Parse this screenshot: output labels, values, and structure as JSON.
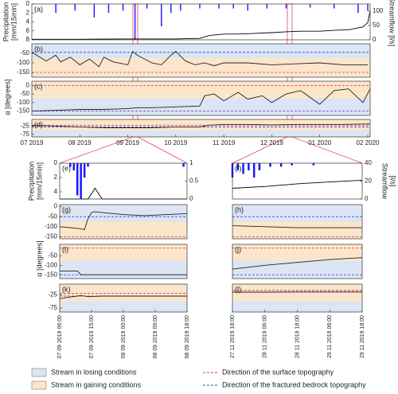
{
  "chart_data": [
    {
      "type": "bar",
      "label": "(a)",
      "xlim": [
        0,
        7.05
      ],
      "invert_y": true,
      "ylim": [
        0,
        8
      ],
      "yticks": [
        0,
        2,
        4,
        6,
        8
      ],
      "ylabel": [
        "Precipitation",
        "[mm/15min]"
      ],
      "y2lim": [
        0,
        125
      ],
      "y2ticks": [
        0,
        50,
        100
      ],
      "y2label": [
        "Streamflow [l/s]"
      ],
      "series": [
        {
          "color": "#1a1aff",
          "x": [
            0.5,
            0.9,
            1.3,
            1.6,
            1.9,
            2.15,
            2.4,
            2.7,
            2.9,
            3.1,
            3.5,
            3.9,
            4.2,
            4.5,
            4.9,
            5.3,
            5.8,
            6.3,
            6.8,
            7.0
          ],
          "values": [
            2,
            1.5,
            3,
            2,
            1.5,
            8,
            1,
            5,
            2,
            1.5,
            1,
            1,
            1,
            1.5,
            1,
            1,
            0.8,
            1,
            2,
            1.5
          ]
        },
        {
          "type": "line",
          "axis": "y2",
          "color": "#000000",
          "x": [
            0,
            1,
            2,
            3,
            3.5,
            3.7,
            4,
            4.3,
            4.6,
            5,
            5.3,
            5.6,
            6,
            6.3,
            6.6,
            6.9,
            7.0,
            7.05
          ],
          "values": [
            2,
            2,
            3,
            3,
            5,
            15,
            20,
            20,
            22,
            25,
            28,
            30,
            30,
            33,
            35,
            45,
            60,
            100
          ]
        }
      ]
    },
    {
      "type": "line",
      "label": "(b)",
      "xlim": [
        0,
        7.05
      ],
      "ylim": [
        -175,
        0
      ],
      "yticks": [
        -50,
        -100,
        -150
      ],
      "bands": [
        {
          "range": [
            -75,
            0
          ],
          "color": "#dbe5f3"
        },
        {
          "range": [
            -175,
            -75
          ],
          "color": "#fbe6cb"
        }
      ],
      "hlines": [
        {
          "value": -45,
          "color": "#3a3ad0"
        },
        {
          "value": -150,
          "color": "#e0305a"
        }
      ],
      "series": [
        {
          "color": "#222222",
          "x": [
            0,
            0.3,
            0.5,
            0.6,
            0.8,
            1.0,
            1.2,
            1.4,
            1.5,
            1.7,
            2.0,
            2.1,
            2.2,
            2.5,
            2.7,
            2.9,
            3.0,
            3.2,
            3.4,
            3.6,
            3.8,
            4.0,
            4.5,
            5.0,
            5.5,
            6.0,
            6.5,
            7.0
          ],
          "values": [
            -45,
            -90,
            -60,
            -95,
            -70,
            -110,
            -80,
            -120,
            -70,
            -95,
            -110,
            -40,
            -60,
            -100,
            -110,
            -60,
            -40,
            -90,
            -110,
            -100,
            -115,
            -100,
            -100,
            -110,
            -105,
            -100,
            -110,
            -110
          ]
        }
      ]
    },
    {
      "type": "line",
      "label": "(c)",
      "xlim": [
        0,
        7.05
      ],
      "ylim": [
        -175,
        25
      ],
      "yticks": [
        0,
        -50,
        -100,
        -150
      ],
      "bands": [
        {
          "range": [
            -75,
            25
          ],
          "color": "#fbe6cb"
        },
        {
          "range": [
            -175,
            -75
          ],
          "color": "#dbe5f3"
        }
      ],
      "hlines": [
        {
          "value": 0,
          "color": "#e0305a"
        },
        {
          "value": -150,
          "color": "#3a3ad0"
        }
      ],
      "series": [
        {
          "color": "#222222",
          "x": [
            0,
            0.5,
            1,
            1.5,
            2,
            2.2,
            2.5,
            3,
            3.5,
            3.6,
            3.8,
            4,
            4.3,
            4.5,
            4.8,
            5,
            5.3,
            5.6,
            6,
            6.3,
            6.6,
            6.9,
            7.05
          ],
          "values": [
            -150,
            -145,
            -140,
            -140,
            -135,
            -130,
            -130,
            -125,
            -120,
            -60,
            -50,
            -90,
            -40,
            -80,
            -60,
            -100,
            -50,
            -30,
            -110,
            -30,
            -20,
            -100,
            -20
          ]
        }
      ]
    },
    {
      "type": "line",
      "label": "(d)",
      "xlim": [
        0,
        7.05
      ],
      "ylim": [
        -90,
        15
      ],
      "yticks": [
        -25,
        -75
      ],
      "xticks": [
        {
          "value": 0,
          "label": "07 2019"
        },
        {
          "value": 1,
          "label": "08 2019"
        },
        {
          "value": 2,
          "label": "09 2019"
        },
        {
          "value": 3,
          "label": "10 2019"
        },
        {
          "value": 4,
          "label": "11 2019"
        },
        {
          "value": 5,
          "label": "12 2019"
        },
        {
          "value": 6,
          "label": "01 2020"
        },
        {
          "value": 7,
          "label": "02 2020"
        }
      ],
      "bands": [
        {
          "range": [
            -50,
            15
          ],
          "color": "#fbe6cb"
        },
        {
          "range": [
            -90,
            -50
          ],
          "color": "#dbe5f3"
        }
      ],
      "hlines": [
        {
          "value": -20,
          "color": "#e0305a"
        },
        {
          "value": -30,
          "color": "#3a3ad0"
        }
      ],
      "series": [
        {
          "color": "#222222",
          "x": [
            0,
            0.5,
            1,
            1.5,
            2,
            2.5,
            3,
            3.5,
            3.7,
            4,
            4.5,
            5,
            5.5,
            6,
            6.5,
            7.05
          ],
          "values": [
            -20,
            -25,
            -30,
            -35,
            -35,
            -35,
            -30,
            -30,
            -20,
            -15,
            -15,
            -18,
            -15,
            -15,
            -15,
            -12
          ]
        }
      ]
    },
    {
      "type": "bar",
      "label": "(e)",
      "xlim": [
        0,
        36
      ],
      "invert_y": true,
      "ylim": [
        0,
        5
      ],
      "yticks": [
        0,
        2,
        4
      ],
      "ylabel": [
        "Precipitation",
        "[mm/15min]"
      ],
      "y2lim": [
        0,
        1
      ],
      "y2ticks": [
        0,
        0.5,
        1
      ],
      "series": [
        {
          "color": "#1a1aff",
          "x": [
            3,
            4,
            5,
            6,
            7,
            8,
            35
          ],
          "values": [
            0.5,
            1,
            4.5,
            5,
            2,
            0.5,
            0.5
          ]
        },
        {
          "type": "line",
          "axis": "y2",
          "color": "#000000",
          "x": [
            0,
            8,
            10,
            12,
            36
          ],
          "values": [
            0,
            0,
            0.3,
            0,
            0
          ]
        }
      ]
    },
    {
      "type": "bar",
      "label": "(f)",
      "xlim": [
        0,
        48
      ],
      "invert_y": true,
      "ylim": [
        0,
        5
      ],
      "y2lim": [
        0,
        40
      ],
      "y2ticks": [
        0,
        20,
        40
      ],
      "y2label": [
        "Streamflow",
        "[l/s]"
      ],
      "series": [
        {
          "color": "#1a1aff",
          "x": [
            0,
            2,
            4,
            6,
            8,
            10,
            14,
            18,
            22,
            30
          ],
          "values": [
            2,
            1,
            1.5,
            1,
            2,
            1,
            0.5,
            0.5,
            0.3,
            0.3
          ]
        },
        {
          "type": "line",
          "axis": "y2",
          "color": "#000000",
          "x": [
            0,
            12,
            24,
            36,
            48
          ],
          "values": [
            12,
            14,
            17,
            19,
            21
          ]
        }
      ]
    },
    {
      "type": "line",
      "label": "(g)",
      "xlim": [
        0,
        36
      ],
      "ylim": [
        -160,
        10
      ],
      "yticks": [
        0,
        -50,
        -100,
        -150
      ],
      "bands": [
        {
          "range": [
            -75,
            10
          ],
          "color": "#dbe5f3"
        },
        {
          "range": [
            -160,
            -75
          ],
          "color": "#fbe6cb"
        }
      ],
      "hlines": [
        {
          "value": -50,
          "color": "#3a3ad0"
        },
        {
          "value": -150,
          "color": "#e0305a"
        }
      ],
      "series": [
        {
          "color": "#222222",
          "x": [
            0,
            3,
            6,
            7,
            8,
            9,
            10,
            12,
            18,
            24,
            30,
            36
          ],
          "values": [
            -100,
            -105,
            -110,
            -115,
            -60,
            -30,
            -25,
            -30,
            -40,
            -45,
            -40,
            -35
          ]
        }
      ]
    },
    {
      "type": "line",
      "label": "(h)",
      "xlim": [
        0,
        48
      ],
      "ylim": [
        -160,
        10
      ],
      "bands": [
        {
          "range": [
            -75,
            10
          ],
          "color": "#dbe5f3"
        },
        {
          "range": [
            -160,
            -75
          ],
          "color": "#fbe6cb"
        }
      ],
      "hlines": [
        {
          "value": -50,
          "color": "#3a3ad0"
        },
        {
          "value": -150,
          "color": "#e0305a"
        }
      ],
      "series": [
        {
          "color": "#222222",
          "x": [
            0,
            12,
            24,
            36,
            48
          ],
          "values": [
            -95,
            -100,
            -105,
            -105,
            -105
          ]
        }
      ]
    },
    {
      "type": "line",
      "label": "(i)",
      "xlim": [
        0,
        36
      ],
      "ylim": [
        -170,
        10
      ],
      "yticks": [
        -50,
        -100,
        -150
      ],
      "bands": [
        {
          "range": [
            -75,
            10
          ],
          "color": "#fbe6cb"
        },
        {
          "range": [
            -170,
            -75
          ],
          "color": "#dbe5f3"
        }
      ],
      "hlines": [
        {
          "value": -10,
          "color": "#e0305a"
        },
        {
          "value": -150,
          "color": "#3a3ad0"
        }
      ],
      "series": [
        {
          "color": "#222222",
          "x": [
            0,
            5,
            6,
            36
          ],
          "values": [
            -130,
            -130,
            -150,
            -150
          ]
        }
      ]
    },
    {
      "type": "line",
      "label": "(j)",
      "xlim": [
        0,
        48
      ],
      "ylim": [
        -170,
        10
      ],
      "bands": [
        {
          "range": [
            -75,
            10
          ],
          "color": "#fbe6cb"
        },
        {
          "range": [
            -170,
            -75
          ],
          "color": "#dbe5f3"
        }
      ],
      "hlines": [
        {
          "value": -10,
          "color": "#e0305a"
        },
        {
          "value": -150,
          "color": "#3a3ad0"
        }
      ],
      "series": [
        {
          "color": "#222222",
          "x": [
            0,
            12,
            24,
            36,
            48
          ],
          "values": [
            -120,
            -100,
            -85,
            -70,
            -60
          ]
        }
      ]
    },
    {
      "type": "line",
      "label": "(k)",
      "xlim": [
        0,
        36
      ],
      "ylim": [
        -90,
        15
      ],
      "yticks": [
        -25,
        -75
      ],
      "xticks": [
        {
          "value": 0,
          "label": "07 09 2019 06:00"
        },
        {
          "value": 9,
          "label": "07 09 2019 15:00"
        },
        {
          "value": 18,
          "label": "08 09 2019 00:00"
        },
        {
          "value": 27,
          "label": "08 09 2019 09:00"
        },
        {
          "value": 36,
          "label": "08 09 2019 18:00"
        }
      ],
      "bands": [
        {
          "range": [
            -50,
            15
          ],
          "color": "#fbe6cb"
        },
        {
          "range": [
            -90,
            -50
          ],
          "color": "#dbe5f3"
        }
      ],
      "hlines": [
        {
          "value": -20,
          "color": "#e0305a"
        },
        {
          "value": -30,
          "color": "#3a3ad0"
        }
      ],
      "series": [
        {
          "color": "#222222",
          "x": [
            0,
            2,
            5,
            6,
            8,
            12,
            24,
            36
          ],
          "values": [
            -40,
            -35,
            -30,
            -28,
            -32,
            -30,
            -30,
            -30
          ]
        }
      ]
    },
    {
      "type": "line",
      "label": "(l)",
      "xlim": [
        0,
        48
      ],
      "ylim": [
        -90,
        15
      ],
      "xticks": [
        {
          "value": 0,
          "label": "27 11 2019 18:00"
        },
        {
          "value": 12,
          "label": "28 11 2019 06:00"
        },
        {
          "value": 24,
          "label": "28 11 2019 18:00"
        },
        {
          "value": 36,
          "label": "29 11 2019 06:00"
        },
        {
          "value": 48,
          "label": "29 11 2019 18:00"
        }
      ],
      "bands": [
        {
          "range": [
            -50,
            15
          ],
          "color": "#fbe6cb"
        },
        {
          "range": [
            -90,
            -50
          ],
          "color": "#dbe5f3"
        }
      ],
      "hlines": [
        {
          "value": -8,
          "color": "#e0305a"
        },
        {
          "value": -15,
          "color": "#3a3ad0"
        }
      ],
      "series": [
        {
          "color": "#222222",
          "x": [
            0,
            12,
            24,
            36,
            48
          ],
          "values": [
            -15,
            -15,
            -14,
            -14,
            -14
          ]
        }
      ]
    }
  ],
  "alpha_label": "α [degrees]",
  "legend": [
    {
      "label": "Stream in losing conditions",
      "style": "box",
      "color": "#dbe5f3"
    },
    {
      "label": "Stream in gaining conditions",
      "style": "box",
      "color": "#fbe6cb"
    },
    {
      "label": "Direction of the surface topography",
      "style": "dash",
      "color": "#e0305a"
    },
    {
      "label": "Direction of the fractured bedrock topography",
      "style": "dash",
      "color": "#3a3ad0"
    }
  ]
}
